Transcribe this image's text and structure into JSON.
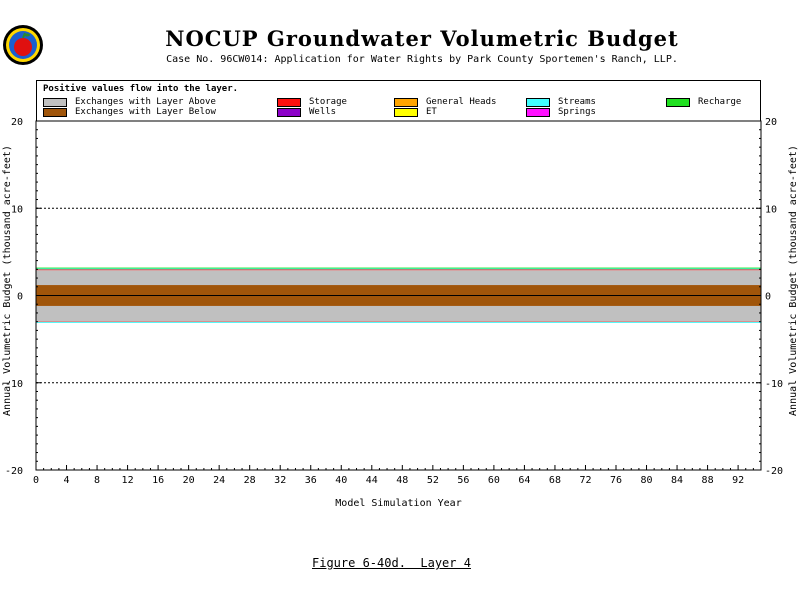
{
  "header": {
    "title": "NOCUP Groundwater Volumetric Budget",
    "subtitle": "Case No. 96CW014: Application for Water Rights by Park County Sportemen's Ranch, LLP.",
    "logo_icon": "apple-logo-icon"
  },
  "legend": {
    "note": "Positive values flow into the layer.",
    "items": [
      {
        "label": "Exchanges with Layer Above",
        "color": "#c0c0c0"
      },
      {
        "label": "Exchanges with Layer Below",
        "color": "#a0550a"
      },
      {
        "label": "Storage",
        "color": "#ff1010"
      },
      {
        "label": "Wells",
        "color": "#8b00c8"
      },
      {
        "label": "General Heads",
        "color": "#ffa500"
      },
      {
        "label": "ET",
        "color": "#ffff00"
      },
      {
        "label": "Streams",
        "color": "#40ffff"
      },
      {
        "label": "Springs",
        "color": "#ff10ff"
      },
      {
        "label": "Recharge",
        "color": "#20e020"
      }
    ]
  },
  "chart_data": {
    "type": "area",
    "xlabel": "Model Simulation Year",
    "ylabel": "Annual Volumetric Budget (thousand acre-feet)",
    "xlim": [
      0,
      95
    ],
    "ylim": [
      -20,
      20
    ],
    "x_ticks": [
      0,
      4,
      8,
      12,
      16,
      20,
      24,
      28,
      32,
      36,
      40,
      44,
      48,
      52,
      56,
      60,
      64,
      68,
      72,
      76,
      80,
      84,
      88,
      92
    ],
    "y_ticks": [
      -20,
      -10,
      0,
      10,
      20
    ],
    "dashed_gridlines_y": [
      10,
      -10
    ],
    "series": [
      {
        "name": "Exchanges with Layer Below",
        "positive": 1.2,
        "negative": -1.2
      },
      {
        "name": "Exchanges with Layer Above",
        "positive": 1.7,
        "negative": -1.8
      },
      {
        "name": "Storage",
        "positive": 0.1,
        "negative": -0.05
      },
      {
        "name": "Streams",
        "positive": 0.1,
        "negative": -0.1
      },
      {
        "name": "Recharge",
        "positive": 0.1,
        "negative": 0
      }
    ]
  },
  "caption": "Figure 6-40d.  Layer 4"
}
